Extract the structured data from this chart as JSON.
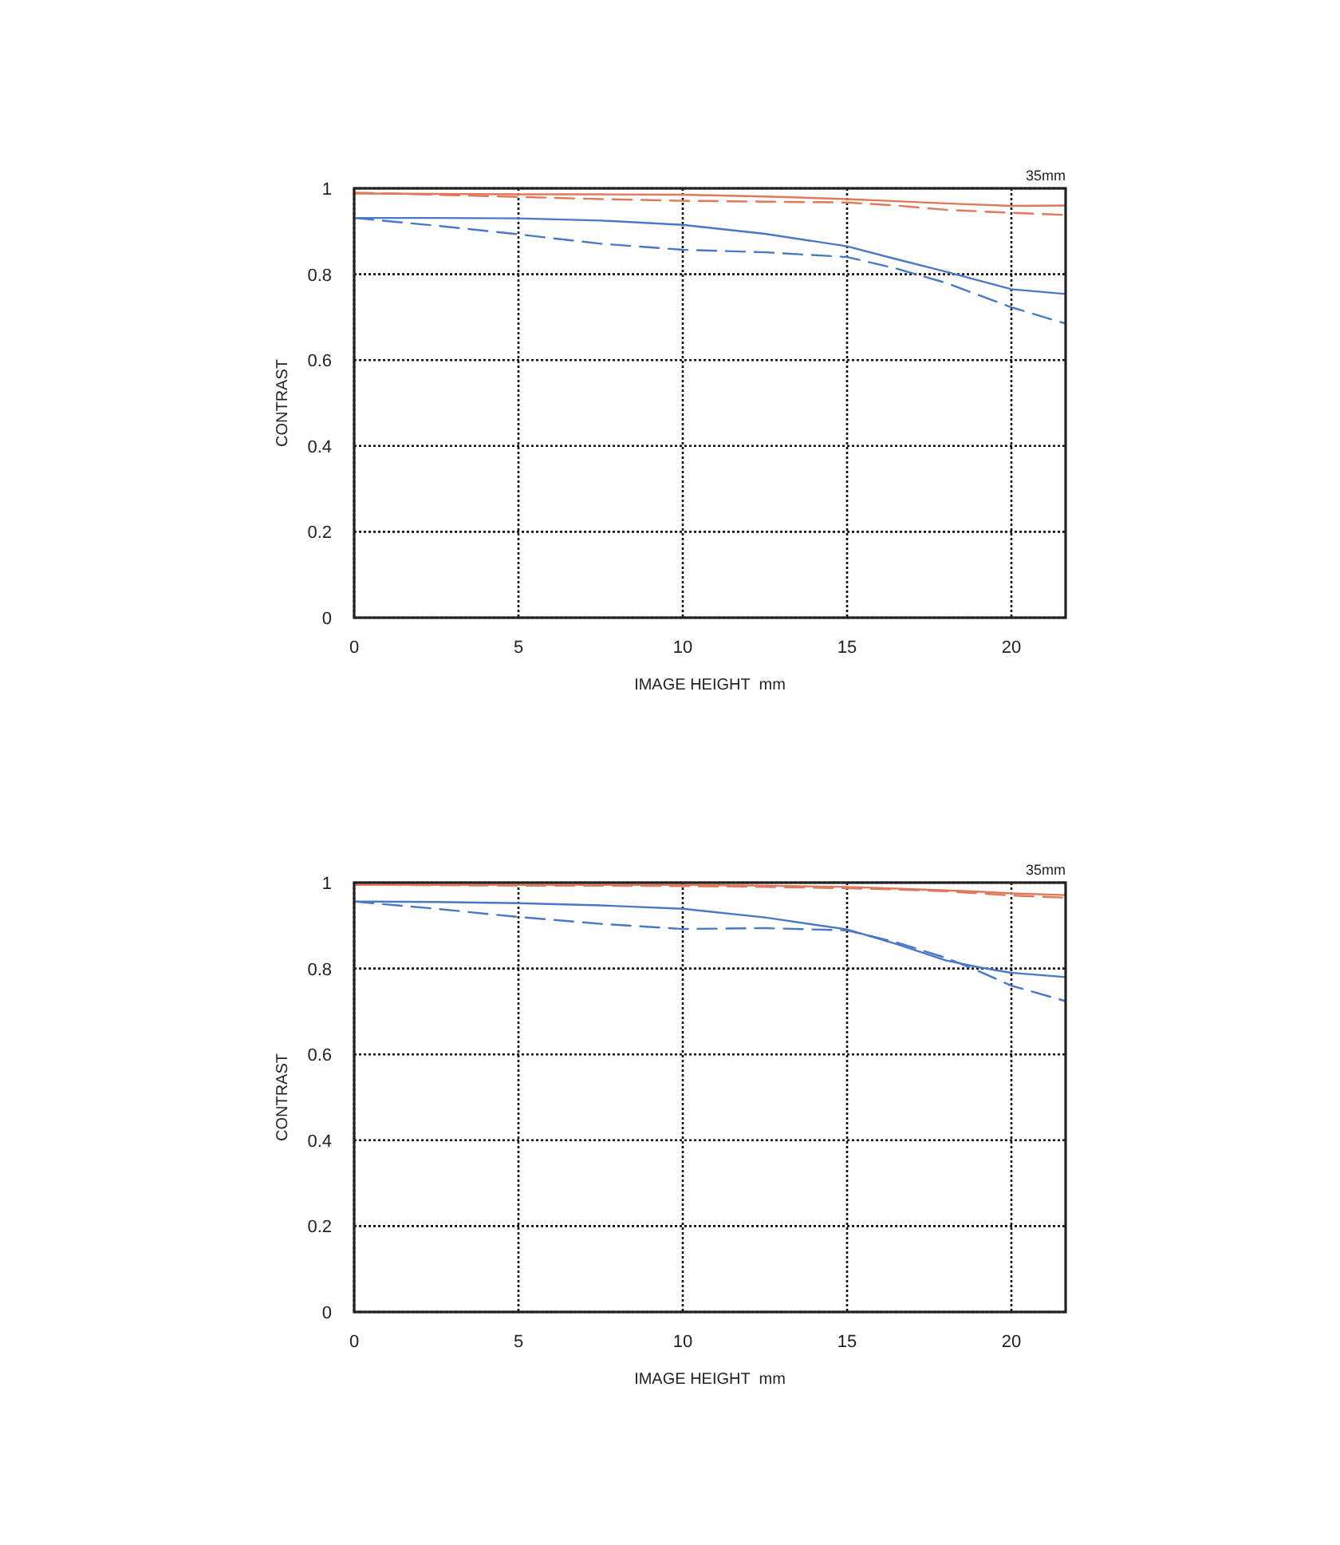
{
  "chart_data": [
    {
      "type": "line",
      "xlabel": "IMAGE HEIGHT  mm",
      "ylabel": "CONTRAST",
      "annotations": [
        "35mm"
      ],
      "xlim": [
        0,
        21.65
      ],
      "ylim": [
        0,
        1
      ],
      "xticks": [
        0,
        5,
        10,
        15,
        20
      ],
      "yticks": [
        0,
        0.2,
        0.4,
        0.6,
        0.8,
        1
      ],
      "grid": true,
      "x": [
        0,
        2.5,
        5,
        7.5,
        10,
        12.5,
        15,
        16.5,
        18,
        20,
        21.65
      ],
      "series": [
        {
          "color": "#e0785a",
          "line_style": "solid",
          "values": [
            0.988,
            0.987,
            0.986,
            0.986,
            0.985,
            0.981,
            0.975,
            0.97,
            0.965,
            0.959,
            0.96
          ]
        },
        {
          "color": "#e0785a",
          "line_style": "dashed",
          "values": [
            0.99,
            0.985,
            0.98,
            0.975,
            0.971,
            0.969,
            0.967,
            0.96,
            0.95,
            0.943,
            0.938
          ]
        },
        {
          "color": "#4a78c8",
          "line_style": "solid",
          "values": [
            0.931,
            0.931,
            0.93,
            0.925,
            0.915,
            0.894,
            0.865,
            0.835,
            0.806,
            0.765,
            0.754
          ]
        },
        {
          "color": "#4a78c8",
          "line_style": "dashed",
          "values": [
            0.931,
            0.913,
            0.893,
            0.871,
            0.857,
            0.851,
            0.84,
            0.813,
            0.78,
            0.723,
            0.685
          ]
        }
      ]
    },
    {
      "type": "line",
      "xlabel": "IMAGE HEIGHT  mm",
      "ylabel": "CONTRAST",
      "annotations": [
        "35mm"
      ],
      "xlim": [
        0,
        21.65
      ],
      "ylim": [
        0,
        1
      ],
      "xticks": [
        0,
        5,
        10,
        15,
        20
      ],
      "yticks": [
        0,
        0.2,
        0.4,
        0.6,
        0.8,
        1
      ],
      "grid": true,
      "x": [
        0,
        2.5,
        5,
        7.5,
        10,
        12.5,
        15,
        16.5,
        18,
        19,
        20,
        21.65
      ],
      "series": [
        {
          "color": "#e0785a",
          "line_style": "solid",
          "values": [
            0.995,
            0.995,
            0.995,
            0.995,
            0.995,
            0.993,
            0.99,
            0.986,
            0.982,
            0.979,
            0.975,
            0.971
          ]
        },
        {
          "color": "#e0785a",
          "line_style": "dashed",
          "values": [
            0.995,
            0.994,
            0.993,
            0.993,
            0.992,
            0.99,
            0.987,
            0.984,
            0.98,
            0.975,
            0.97,
            0.965
          ]
        },
        {
          "color": "#4a78c8",
          "line_style": "solid",
          "values": [
            0.956,
            0.955,
            0.952,
            0.947,
            0.939,
            0.919,
            0.891,
            0.857,
            0.819,
            0.803,
            0.79,
            0.78
          ]
        },
        {
          "color": "#4a78c8",
          "line_style": "dashed",
          "values": [
            0.956,
            0.939,
            0.92,
            0.904,
            0.892,
            0.894,
            0.889,
            0.861,
            0.825,
            0.794,
            0.76,
            0.724
          ]
        }
      ]
    }
  ]
}
